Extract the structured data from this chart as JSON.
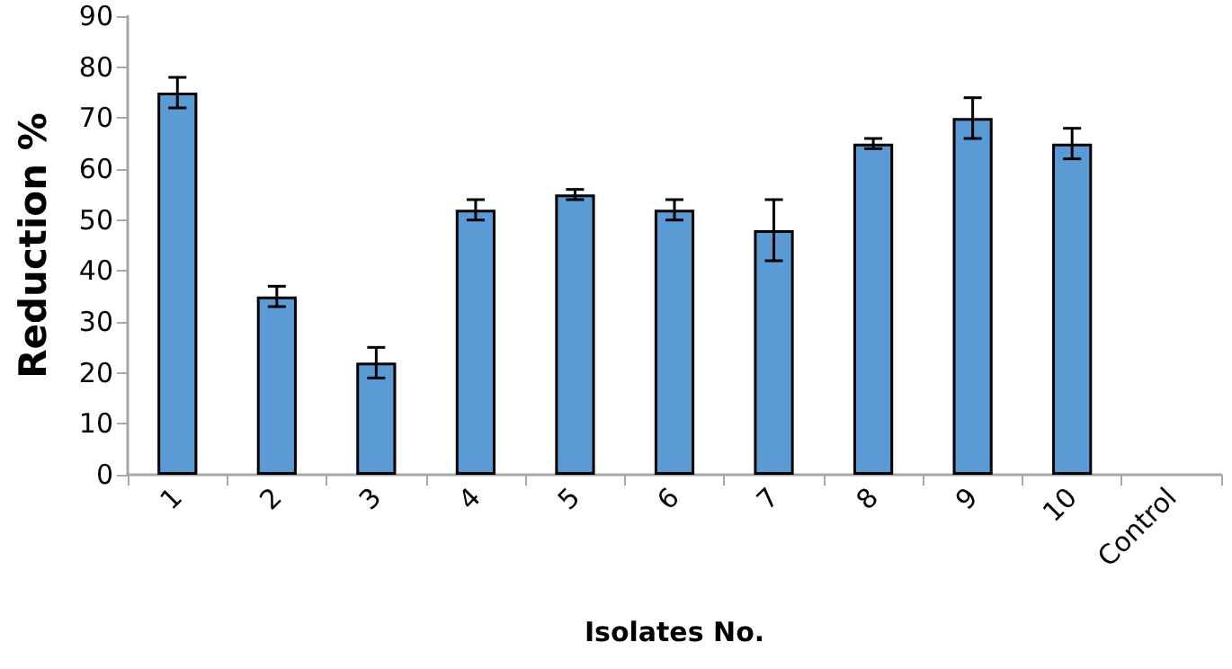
{
  "chart_data": {
    "type": "bar",
    "xlabel": "Isolates No.",
    "ylabel": "Reduction %",
    "categories": [
      "1",
      "2",
      "3",
      "4",
      "5",
      "6",
      "7",
      "8",
      "9",
      "10",
      "Control"
    ],
    "values": [
      75,
      35,
      22,
      52,
      55,
      52,
      48,
      65,
      70,
      65,
      null
    ],
    "errors": [
      3,
      2,
      3,
      2,
      1,
      2,
      6,
      1,
      4,
      3,
      null
    ],
    "color": "#5b9bd5",
    "ylim": [
      0,
      90
    ],
    "yticks": [
      0,
      10,
      20,
      30,
      40,
      50,
      60,
      70,
      80,
      90
    ],
    "grid": false
  }
}
